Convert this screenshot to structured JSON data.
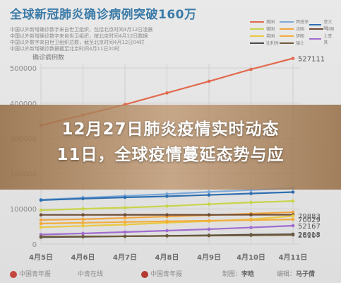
{
  "header": {
    "title": "全球新冠肺炎确诊病例突破160万",
    "source_lines": [
      "中国以外新增确诊数字来自世卫组织，包括北京时间4月12日凌晨",
      "中国以外新增确诊数字来自世卫组织，按北京时间4月12日数据",
      "中国以外数字来自世卫组织总数，截至北京时间4月12日04时",
      "中国以外新增确诊数据截至北京时间4月11日20时"
    ]
  },
  "overlay": {
    "headline_line1": "12月27日肺炎疫情实时动态",
    "headline_line2": "11日，全球疫情蔓延态势与应"
  },
  "footer": {
    "logo1": "中国青年报",
    "logo2": "中青在线",
    "logo3": "中国青年报",
    "credit_label": "制图：",
    "credit_name": "李晗",
    "editor_label": "编辑：",
    "editor_name": "马子倩"
  },
  "colors": {
    "background": "#e3e3e3",
    "grid": "#cfcfcf",
    "axis_text": "#8c8c8c",
    "title": "#3b7ba8"
  },
  "chart_data": {
    "type": "line",
    "ylabel": "确诊病例数",
    "ylim": [
      0,
      500000
    ],
    "yticks": [
      0,
      100000,
      200000,
      300000,
      400000,
      500000
    ],
    "categories": [
      "4月5日",
      "4月6日",
      "4月7日",
      "4月8日",
      "4月9日",
      "4月10日",
      "4月11日"
    ],
    "grid": true,
    "legend_position": "top-right",
    "series": [
      {
        "name": "美国",
        "color": "#e26a4f",
        "values": [
          337000,
          366000,
          396000,
          429000,
          462000,
          496000,
          527111
        ],
        "end_label": "527111"
      },
      {
        "name": "西班牙",
        "color": "#7ea8d8",
        "values": [
          126168,
          131646,
          136675,
          141942,
          148220,
          153222,
          158273
        ],
        "end_label": ""
      },
      {
        "name": "意大利",
        "color": "#2f6fb0",
        "values": [
          124632,
          128948,
          132547,
          135586,
          139422,
          143626,
          147577
        ],
        "end_label": ""
      },
      {
        "name": "德国",
        "color": "#c8d44a",
        "values": [
          96092,
          100123,
          103374,
          107663,
          113296,
          118181,
          122171
        ],
        "end_label": ""
      },
      {
        "name": "法国",
        "color": "#f0a640",
        "values": [
          68605,
          70478,
          74390,
          78167,
          82048,
          86334,
          90676
        ],
        "end_label": ""
      },
      {
        "name": "中国",
        "color": "#6f4c34",
        "values": [
          82930,
          82987,
          83034,
          83085,
          83134,
          83209,
          83322
        ],
        "end_label": ""
      },
      {
        "name": "英国",
        "color": "#e9c843",
        "values": [
          47806,
          51608,
          55242,
          60733,
          65077,
          70272,
          79883
        ],
        "end_label": "79883"
      },
      {
        "name": "伊朗",
        "color": "#f1ad3d",
        "values": [
          58226,
          60500,
          62589,
          64586,
          66220,
          68192,
          70029
        ],
        "end_label": "70029"
      },
      {
        "name": "土耳其",
        "color": "#a06cd0",
        "values": [
          27069,
          30217,
          34109,
          38226,
          42282,
          47029,
          52167
        ],
        "end_label": "52167"
      },
      {
        "name": "比利时",
        "color": "#4a4a4a",
        "values": [
          19691,
          20814,
          22194,
          23403,
          24983,
          26667,
          28018
        ],
        "end_label": "28018"
      },
      {
        "name": "瑞士",
        "color": "#6d5a3a",
        "values": [
          21100,
          21657,
          22253,
          23280,
          24051,
          24900,
          26107
        ],
        "end_label": "26107"
      }
    ]
  }
}
